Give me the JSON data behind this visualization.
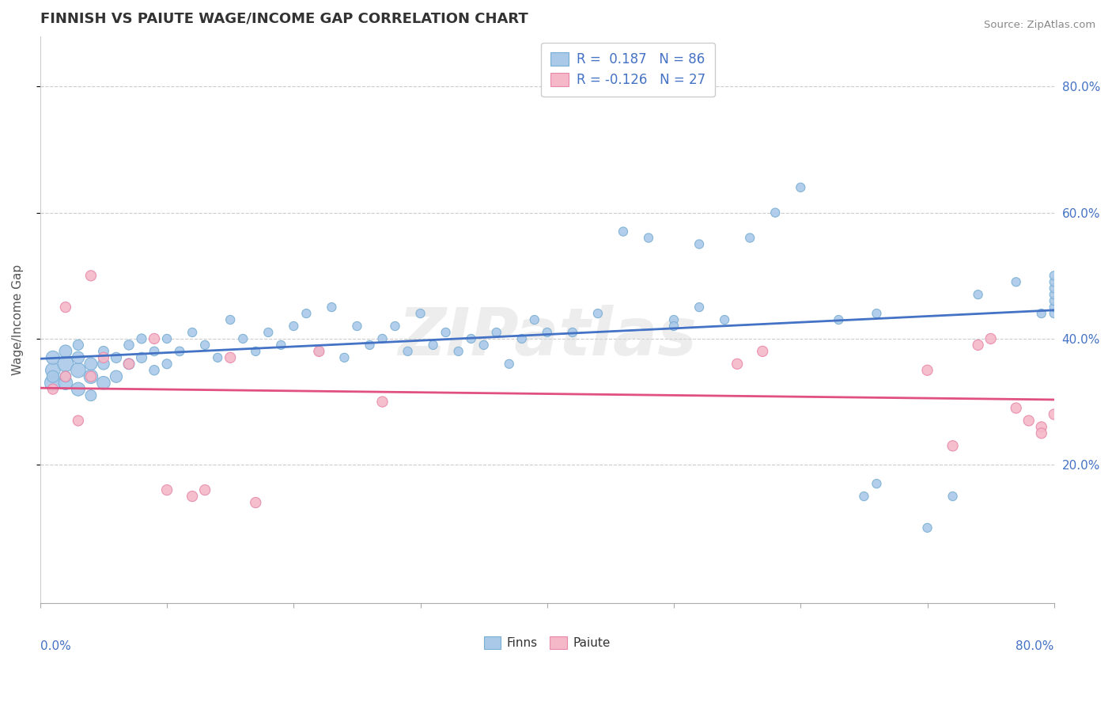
{
  "title": "FINNISH VS PAIUTE WAGE/INCOME GAP CORRELATION CHART",
  "source": "Source: ZipAtlas.com",
  "ylabel": "Wage/Income Gap",
  "right_ytick_labels": [
    "20.0%",
    "40.0%",
    "60.0%",
    "80.0%"
  ],
  "right_ytick_values": [
    0.2,
    0.4,
    0.6,
    0.8
  ],
  "xlim": [
    0.0,
    0.8
  ],
  "ylim": [
    -0.02,
    0.88
  ],
  "finn_color": "#aac9e8",
  "finn_edge_color": "#7aafd4",
  "paiute_color": "#f4b8c8",
  "paiute_edge_color": "#e888aa",
  "finn_line_color": "#4472c4",
  "paiute_line_color": "#e05080",
  "legend_finn_r": " 0.187",
  "legend_finn_n": "86",
  "legend_paiute_r": "-0.126",
  "legend_paiute_n": "27",
  "watermark": "ZIPatlas",
  "background_color": "#ffffff",
  "grid_color": "#cccccc",
  "title_color": "#333333",
  "label_color": "#4472c4",
  "finn_x": [
    0.01,
    0.01,
    0.01,
    0.01,
    0.02,
    0.02,
    0.02,
    0.02,
    0.03,
    0.03,
    0.03,
    0.03,
    0.04,
    0.04,
    0.04,
    0.05,
    0.05,
    0.05,
    0.06,
    0.06,
    0.07,
    0.07,
    0.08,
    0.08,
    0.09,
    0.09,
    0.1,
    0.1,
    0.11,
    0.12,
    0.13,
    0.14,
    0.15,
    0.16,
    0.17,
    0.18,
    0.19,
    0.2,
    0.21,
    0.22,
    0.23,
    0.24,
    0.25,
    0.26,
    0.27,
    0.28,
    0.29,
    0.3,
    0.31,
    0.32,
    0.33,
    0.34,
    0.35,
    0.36,
    0.37,
    0.38,
    0.39,
    0.4,
    0.42,
    0.44,
    0.46,
    0.48,
    0.5,
    0.52,
    0.54,
    0.56,
    0.58,
    0.6,
    0.63,
    0.66,
    0.5,
    0.52,
    0.65,
    0.66,
    0.7,
    0.72,
    0.74,
    0.77,
    0.79,
    0.8,
    0.8,
    0.8,
    0.8,
    0.8,
    0.8,
    0.8
  ],
  "finn_y": [
    0.33,
    0.35,
    0.37,
    0.34,
    0.36,
    0.33,
    0.38,
    0.34,
    0.35,
    0.32,
    0.37,
    0.39,
    0.34,
    0.36,
    0.31,
    0.33,
    0.36,
    0.38,
    0.34,
    0.37,
    0.36,
    0.39,
    0.37,
    0.4,
    0.35,
    0.38,
    0.36,
    0.4,
    0.38,
    0.41,
    0.39,
    0.37,
    0.43,
    0.4,
    0.38,
    0.41,
    0.39,
    0.42,
    0.44,
    0.38,
    0.45,
    0.37,
    0.42,
    0.39,
    0.4,
    0.42,
    0.38,
    0.44,
    0.39,
    0.41,
    0.38,
    0.4,
    0.39,
    0.41,
    0.36,
    0.4,
    0.43,
    0.41,
    0.41,
    0.44,
    0.57,
    0.56,
    0.43,
    0.55,
    0.43,
    0.56,
    0.6,
    0.64,
    0.43,
    0.44,
    0.42,
    0.45,
    0.15,
    0.17,
    0.1,
    0.15,
    0.47,
    0.49,
    0.44,
    0.44,
    0.45,
    0.46,
    0.47,
    0.48,
    0.49,
    0.5
  ],
  "finn_sizes": [
    220,
    180,
    150,
    120,
    200,
    160,
    130,
    100,
    180,
    150,
    120,
    90,
    160,
    130,
    100,
    140,
    110,
    85,
    120,
    90,
    100,
    80,
    90,
    75,
    80,
    70,
    75,
    65,
    70,
    65,
    65,
    65,
    65,
    65,
    65,
    65,
    65,
    65,
    65,
    65,
    65,
    65,
    65,
    65,
    65,
    65,
    65,
    65,
    65,
    65,
    65,
    65,
    65,
    65,
    65,
    65,
    65,
    65,
    65,
    65,
    65,
    65,
    65,
    65,
    65,
    65,
    65,
    65,
    65,
    65,
    65,
    65,
    65,
    65,
    65,
    65,
    65,
    65,
    65,
    65,
    65,
    65,
    65,
    65,
    65,
    65
  ],
  "paiute_x": [
    0.01,
    0.02,
    0.02,
    0.03,
    0.04,
    0.04,
    0.05,
    0.07,
    0.09,
    0.1,
    0.12,
    0.13,
    0.15,
    0.17,
    0.22,
    0.27,
    0.55,
    0.57,
    0.7,
    0.72,
    0.74,
    0.75,
    0.77,
    0.78,
    0.79,
    0.79,
    0.8
  ],
  "paiute_y": [
    0.32,
    0.45,
    0.34,
    0.27,
    0.5,
    0.34,
    0.37,
    0.36,
    0.4,
    0.16,
    0.15,
    0.16,
    0.37,
    0.14,
    0.38,
    0.3,
    0.36,
    0.38,
    0.35,
    0.23,
    0.39,
    0.4,
    0.29,
    0.27,
    0.26,
    0.25,
    0.28
  ],
  "paiute_sizes": [
    90,
    90,
    90,
    90,
    90,
    90,
    90,
    90,
    90,
    90,
    90,
    90,
    90,
    90,
    90,
    90,
    90,
    90,
    90,
    90,
    90,
    90,
    90,
    90,
    90,
    90,
    90
  ]
}
